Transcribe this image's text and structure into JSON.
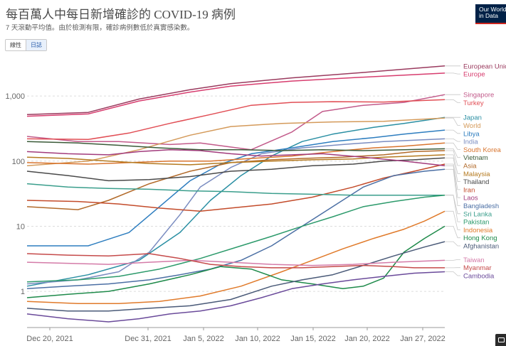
{
  "header": {
    "title": "每百萬人中每日新增確診的 COVID-19 病例",
    "subtitle": "7 天滾動平均值。由於檢測有限，確診病例數低於真實感染數。"
  },
  "logo": {
    "line1": "Our World",
    "line2": "in Data"
  },
  "controls": {
    "linear_label": "線性",
    "log_label": "日誌",
    "selected": "log"
  },
  "chart_data": {
    "type": "line",
    "title": "每百萬人中每日新增確診的 COVID-19 病例",
    "x_axis": {
      "ticks": [
        "Dec 20, 2021",
        "Dec 31, 2021",
        "Jan 5, 2022",
        "Jan 10, 2022",
        "Jan 15, 2022",
        "Jan 20, 2022",
        "Jan 27, 2022"
      ]
    },
    "y_axis": {
      "scale": "log",
      "ticks": [
        "1",
        "10",
        "100",
        "1,000"
      ],
      "ylim": [
        0.3,
        4000
      ]
    },
    "x_range": [
      0,
      41
    ],
    "series": [
      {
        "name": "European Union",
        "color": "#9a3a5e",
        "points": [
          [
            0,
            520
          ],
          [
            6,
            560
          ],
          [
            11,
            900
          ],
          [
            16,
            1250
          ],
          [
            20,
            1550
          ],
          [
            26,
            1900
          ],
          [
            33,
            2300
          ],
          [
            41,
            2900
          ]
        ]
      },
      {
        "name": "Europe",
        "color": "#d73c6e",
        "points": [
          [
            0,
            490
          ],
          [
            6,
            530
          ],
          [
            11,
            840
          ],
          [
            16,
            1150
          ],
          [
            20,
            1420
          ],
          [
            26,
            1700
          ],
          [
            33,
            1950
          ],
          [
            41,
            2250
          ]
        ]
      },
      {
        "name": "Singapore",
        "color": "#c25a8a",
        "points": [
          [
            0,
            240
          ],
          [
            5,
            200
          ],
          [
            9,
            200
          ],
          [
            14,
            180
          ],
          [
            17,
            190
          ],
          [
            22,
            150
          ],
          [
            26,
            280
          ],
          [
            29,
            580
          ],
          [
            33,
            720
          ],
          [
            37,
            800
          ],
          [
            41,
            1050
          ]
        ]
      },
      {
        "name": "Turkey",
        "color": "#e14e55",
        "points": [
          [
            0,
            220
          ],
          [
            6,
            215
          ],
          [
            10,
            270
          ],
          [
            14,
            380
          ],
          [
            18,
            520
          ],
          [
            22,
            720
          ],
          [
            26,
            800
          ],
          [
            30,
            820
          ],
          [
            35,
            810
          ],
          [
            41,
            880
          ]
        ]
      },
      {
        "name": "Japan",
        "color": "#2a8fa3",
        "points": [
          [
            0,
            1.2
          ],
          [
            6,
            1.8
          ],
          [
            11,
            3
          ],
          [
            15,
            8
          ],
          [
            18,
            25
          ],
          [
            21,
            60
          ],
          [
            24,
            120
          ],
          [
            27,
            200
          ],
          [
            30,
            260
          ],
          [
            34,
            330
          ],
          [
            37,
            380
          ],
          [
            41,
            470
          ]
        ]
      },
      {
        "name": "World",
        "color": "#d49a5a",
        "points": [
          [
            0,
            85
          ],
          [
            6,
            100
          ],
          [
            11,
            150
          ],
          [
            16,
            250
          ],
          [
            20,
            340
          ],
          [
            25,
            380
          ],
          [
            30,
            400
          ],
          [
            35,
            410
          ],
          [
            41,
            460
          ]
        ]
      },
      {
        "name": "Libya",
        "color": "#2d7dbf",
        "points": [
          [
            0,
            5
          ],
          [
            6,
            5
          ],
          [
            10,
            8
          ],
          [
            13,
            20
          ],
          [
            16,
            50
          ],
          [
            19,
            90
          ],
          [
            22,
            130
          ],
          [
            26,
            160
          ],
          [
            30,
            200
          ],
          [
            34,
            230
          ],
          [
            37,
            260
          ],
          [
            41,
            300
          ]
        ]
      },
      {
        "name": "India",
        "color": "#7a8cc0",
        "points": [
          [
            0,
            1.3
          ],
          [
            5,
            1.5
          ],
          [
            9,
            2
          ],
          [
            12,
            4
          ],
          [
            15,
            15
          ],
          [
            17,
            40
          ],
          [
            20,
            80
          ],
          [
            23,
            130
          ],
          [
            27,
            160
          ],
          [
            31,
            180
          ],
          [
            35,
            200
          ],
          [
            41,
            220
          ]
        ]
      },
      {
        "name": "South Korea",
        "color": "#d8742e",
        "points": [
          [
            0,
            95
          ],
          [
            6,
            90
          ],
          [
            10,
            95
          ],
          [
            14,
            100
          ],
          [
            18,
            100
          ],
          [
            22,
            110
          ],
          [
            26,
            120
          ],
          [
            30,
            140
          ],
          [
            34,
            160
          ],
          [
            37,
            170
          ],
          [
            41,
            190
          ]
        ]
      },
      {
        "name": "Vietnam",
        "color": "#3a5a38",
        "points": [
          [
            0,
            200
          ],
          [
            5,
            190
          ],
          [
            9,
            175
          ],
          [
            13,
            160
          ],
          [
            17,
            150
          ],
          [
            21,
            150
          ],
          [
            25,
            145
          ],
          [
            29,
            150
          ],
          [
            33,
            145
          ],
          [
            37,
            150
          ],
          [
            41,
            155
          ]
        ]
      },
      {
        "name": "Asia",
        "color": "#b26a2a",
        "points": [
          [
            0,
            20
          ],
          [
            5,
            18
          ],
          [
            8,
            25
          ],
          [
            12,
            45
          ],
          [
            16,
            70
          ],
          [
            20,
            95
          ],
          [
            24,
            105
          ],
          [
            27,
            110
          ],
          [
            31,
            115
          ],
          [
            35,
            125
          ],
          [
            38,
            140
          ],
          [
            41,
            145
          ]
        ]
      },
      {
        "name": "Malaysia",
        "color": "#b57a20",
        "points": [
          [
            0,
            115
          ],
          [
            4,
            110
          ],
          [
            8,
            100
          ],
          [
            12,
            92
          ],
          [
            16,
            88
          ],
          [
            20,
            95
          ],
          [
            24,
            100
          ],
          [
            28,
            105
          ],
          [
            32,
            108
          ],
          [
            35,
            115
          ],
          [
            38,
            120
          ],
          [
            41,
            125
          ]
        ]
      },
      {
        "name": "Thailand",
        "color": "#4a4a4a",
        "points": [
          [
            0,
            70
          ],
          [
            4,
            60
          ],
          [
            8,
            50
          ],
          [
            12,
            52
          ],
          [
            16,
            58
          ],
          [
            20,
            70
          ],
          [
            24,
            75
          ],
          [
            28,
            85
          ],
          [
            32,
            90
          ],
          [
            35,
            100
          ],
          [
            38,
            105
          ],
          [
            41,
            112
          ]
        ]
      },
      {
        "name": "Iran",
        "color": "#c34b2a",
        "points": [
          [
            0,
            25
          ],
          [
            5,
            24
          ],
          [
            9,
            22
          ],
          [
            13,
            19
          ],
          [
            17,
            17
          ],
          [
            20,
            19
          ],
          [
            24,
            22
          ],
          [
            28,
            28
          ],
          [
            32,
            40
          ],
          [
            35,
            55
          ],
          [
            38,
            70
          ],
          [
            41,
            90
          ]
        ]
      },
      {
        "name": "Bangladesh",
        "color": "#4b6fa4",
        "points": [
          [
            0,
            1.1
          ],
          [
            4,
            1.2
          ],
          [
            8,
            1.3
          ],
          [
            12,
            1.5
          ],
          [
            15,
            1.8
          ],
          [
            18,
            2.2
          ],
          [
            21,
            3
          ],
          [
            24,
            5
          ],
          [
            27,
            10
          ],
          [
            30,
            20
          ],
          [
            33,
            40
          ],
          [
            36,
            60
          ],
          [
            39,
            70
          ],
          [
            41,
            75
          ]
        ]
      },
      {
        "name": "Laos",
        "color": "#a23b7c",
        "points": [
          [
            0,
            140
          ],
          [
            4,
            130
          ],
          [
            8,
            125
          ],
          [
            11,
            140
          ],
          [
            14,
            150
          ],
          [
            17,
            145
          ],
          [
            20,
            130
          ],
          [
            23,
            120
          ],
          [
            26,
            125
          ],
          [
            29,
            130
          ],
          [
            33,
            115
          ],
          [
            37,
            100
          ],
          [
            41,
            85
          ]
        ]
      },
      {
        "name": "Sri Lanka",
        "color": "#3a9e8c",
        "points": [
          [
            0,
            45
          ],
          [
            4,
            40
          ],
          [
            8,
            38
          ],
          [
            12,
            37
          ],
          [
            16,
            35
          ],
          [
            20,
            34
          ],
          [
            24,
            32
          ],
          [
            28,
            31
          ],
          [
            32,
            30
          ],
          [
            36,
            30
          ],
          [
            41,
            30
          ]
        ]
      },
      {
        "name": "Pakistan",
        "color": "#2c9a6b",
        "points": [
          [
            0,
            1.4
          ],
          [
            5,
            1.5
          ],
          [
            9,
            1.7
          ],
          [
            13,
            2.2
          ],
          [
            17,
            3.2
          ],
          [
            21,
            5
          ],
          [
            24,
            7
          ],
          [
            27,
            10
          ],
          [
            30,
            14
          ],
          [
            33,
            20
          ],
          [
            36,
            24
          ],
          [
            39,
            28
          ],
          [
            41,
            30
          ]
        ]
      },
      {
        "name": "Indonesia",
        "color": "#e07a2a",
        "points": [
          [
            0,
            0.7
          ],
          [
            5,
            0.65
          ],
          [
            9,
            0.65
          ],
          [
            13,
            0.7
          ],
          [
            17,
            0.85
          ],
          [
            21,
            1.2
          ],
          [
            25,
            2
          ],
          [
            28,
            3
          ],
          [
            31,
            4.5
          ],
          [
            34,
            6.5
          ],
          [
            37,
            9
          ],
          [
            39,
            12
          ],
          [
            41,
            17
          ]
        ]
      },
      {
        "name": "Hong Kong",
        "color": "#1e8a4a",
        "points": [
          [
            0,
            0.8
          ],
          [
            4,
            0.9
          ],
          [
            8,
            1.0
          ],
          [
            12,
            1.3
          ],
          [
            16,
            1.8
          ],
          [
            19,
            2.4
          ],
          [
            22,
            2.2
          ],
          [
            25,
            1.5
          ],
          [
            28,
            1.3
          ],
          [
            31,
            1.1
          ],
          [
            33,
            1.2
          ],
          [
            35,
            1.6
          ],
          [
            37,
            4
          ],
          [
            39,
            6.5
          ],
          [
            41,
            10
          ]
        ]
      },
      {
        "name": "Afghanistan",
        "color": "#4a5a78",
        "points": [
          [
            0,
            0.55
          ],
          [
            4,
            0.5
          ],
          [
            8,
            0.5
          ],
          [
            12,
            0.55
          ],
          [
            16,
            0.6
          ],
          [
            20,
            0.75
          ],
          [
            24,
            1.2
          ],
          [
            27,
            1.5
          ],
          [
            30,
            1.8
          ],
          [
            33,
            2.5
          ],
          [
            36,
            3.5
          ],
          [
            39,
            4.8
          ],
          [
            41,
            5.8
          ]
        ]
      },
      {
        "name": "Taiwan",
        "color": "#d47ba8",
        "points": [
          [
            0,
            2.8
          ],
          [
            4,
            2.7
          ],
          [
            8,
            2.6
          ],
          [
            12,
            2.8
          ],
          [
            16,
            3.0
          ],
          [
            20,
            2.8
          ],
          [
            24,
            2.6
          ],
          [
            28,
            2.5
          ],
          [
            32,
            2.6
          ],
          [
            36,
            2.8
          ],
          [
            41,
            3.0
          ]
        ]
      },
      {
        "name": "Myanmar",
        "color": "#c54a4a",
        "points": [
          [
            0,
            3.8
          ],
          [
            4,
            3.6
          ],
          [
            8,
            3.5
          ],
          [
            12,
            3.8
          ],
          [
            15,
            3.2
          ],
          [
            18,
            2.6
          ],
          [
            21,
            2.4
          ],
          [
            24,
            2.3
          ],
          [
            27,
            2.3
          ],
          [
            30,
            2.4
          ],
          [
            33,
            2.5
          ],
          [
            36,
            2.4
          ],
          [
            38,
            2.3
          ],
          [
            41,
            2.3
          ]
        ]
      },
      {
        "name": "Cambodia",
        "color": "#6a4a9a",
        "points": [
          [
            0,
            0.45
          ],
          [
            4,
            0.38
          ],
          [
            8,
            0.34
          ],
          [
            11,
            0.38
          ],
          [
            14,
            0.45
          ],
          [
            17,
            0.5
          ],
          [
            20,
            0.6
          ],
          [
            23,
            0.8
          ],
          [
            26,
            1.1
          ],
          [
            29,
            1.3
          ],
          [
            32,
            1.5
          ],
          [
            35,
            1.7
          ],
          [
            38,
            1.9
          ],
          [
            41,
            2.0
          ]
        ]
      }
    ]
  }
}
